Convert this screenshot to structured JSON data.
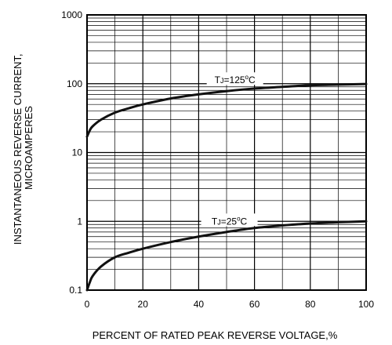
{
  "chart_data": {
    "type": "line",
    "title": "",
    "xlabel": "PERCENT OF RATED PEAK REVERSE VOLTAGE,%",
    "ylabel_lines": [
      "INSTANTANEOUS REVERSE CURRENT,",
      "MICROAMPERES"
    ],
    "xlim": [
      0,
      100
    ],
    "ylim": [
      0.1,
      1000
    ],
    "y_scale": "log",
    "grid": true,
    "x_ticks": [
      0,
      20,
      40,
      60,
      80,
      100
    ],
    "x_tick_labels": [
      "0",
      "20",
      "40",
      "60",
      "80",
      "100"
    ],
    "y_ticks": [
      0.1,
      1,
      10,
      100,
      1000
    ],
    "y_tick_labels": [
      "0.1",
      "1",
      "10",
      "100",
      "1000"
    ],
    "series": [
      {
        "label_main": "T",
        "label_sub": "J",
        "label_mid": "=125",
        "label_sup": "o",
        "label_end": "C",
        "label_at_x": 53,
        "x": [
          0,
          1,
          2,
          5,
          10,
          15,
          20,
          30,
          40,
          50,
          60,
          70,
          80,
          90,
          100
        ],
        "y": [
          17,
          21,
          24,
          30,
          38,
          44,
          50,
          61,
          70,
          78,
          85,
          90,
          95,
          97,
          99
        ]
      },
      {
        "label_main": "T",
        "label_sub": "J",
        "label_mid": "=25",
        "label_sup": "o",
        "label_end": "C",
        "label_at_x": 51,
        "x": [
          0,
          1,
          2,
          5,
          10,
          15,
          20,
          30,
          40,
          50,
          60,
          70,
          80,
          90,
          100
        ],
        "y": [
          0.1,
          0.13,
          0.16,
          0.22,
          0.3,
          0.35,
          0.4,
          0.5,
          0.6,
          0.7,
          0.8,
          0.87,
          0.93,
          0.97,
          1.0
        ]
      }
    ]
  }
}
